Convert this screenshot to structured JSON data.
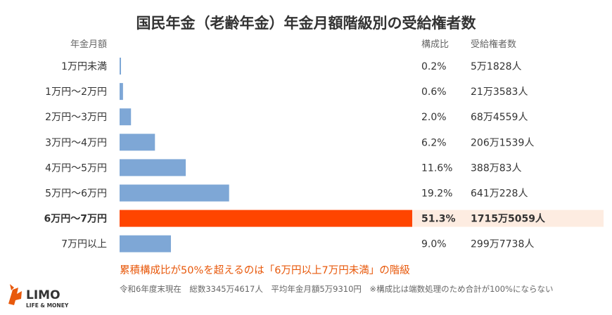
{
  "chart_data": {
    "type": "bar",
    "orientation": "horizontal",
    "title": "国民年金（老齢年金）年金月額階級別の受給権者数",
    "category_header": "年金月額",
    "ratio_header": "構成比",
    "count_header": "受給権者数",
    "categories": [
      "1万円未満",
      "1万円～2万円",
      "2万円～3万円",
      "3万円～4万円",
      "4万円～5万円",
      "5万円～6万円",
      "6万円～7万円",
      "7万円以上"
    ],
    "values": [
      0.2,
      0.6,
      2.0,
      6.2,
      11.6,
      19.2,
      51.3,
      9.0
    ],
    "ratio_labels": [
      "0.2%",
      "0.6%",
      "2.0%",
      "6.2%",
      "11.6%",
      "19.2%",
      "51.3%",
      "9.0%"
    ],
    "count_labels": [
      "5万1828人",
      "21万3583人",
      "68万4559人",
      "206万1539人",
      "388万83人",
      "641万228人",
      "1715万5059人",
      "299万7738人"
    ],
    "highlight_index": 6,
    "annotation": "累積構成比が50%を超えるのは「6万円以上7万円未満」の階級",
    "footnote": "令和6年度末現在　総数3345万4617人　平均年金月額5万9310円　※構成比は端数処理のため合計が100%にならない",
    "colors": {
      "bar": "#7ea7d6",
      "highlight_bar": "#ff4500",
      "highlight_row_bg": "#fdece1",
      "annotation": "#e8590c",
      "text": "#333333",
      "muted": "#666666"
    }
  },
  "logo": {
    "name": "LIMO",
    "tagline": "LIFE & MONEY"
  }
}
